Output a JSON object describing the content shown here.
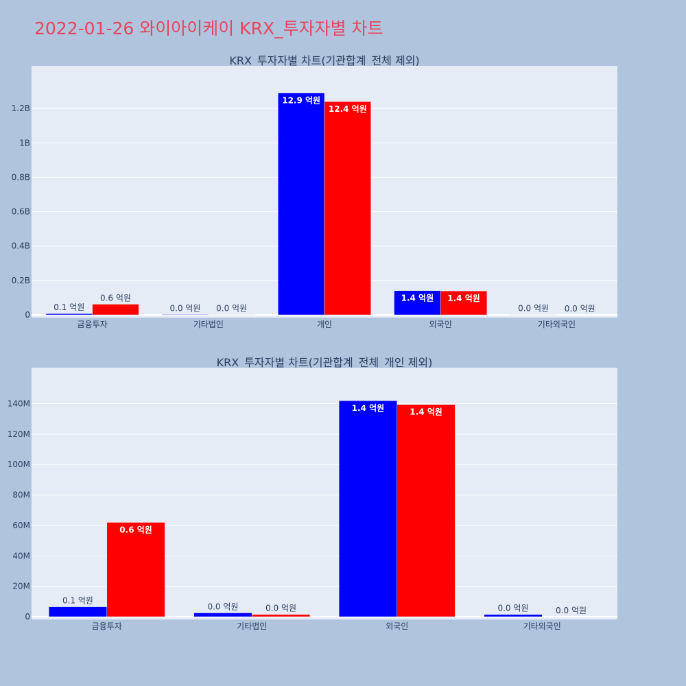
{
  "page_title": "2022-01-26 와이아이케이 KRX_투자자별 차트",
  "colors": {
    "background": "#b0c4de",
    "plot_background": "#e5ecf6",
    "grid": "#ffffff",
    "title": "#e8455a",
    "text": "#2a3f5f",
    "series_a": "#0000ff",
    "series_b": "#ff0000"
  },
  "chart_data": [
    {
      "type": "bar",
      "title": "KRX_투자자별 차트(기관합계_전체 제외)",
      "xlabel": "",
      "ylabel": "",
      "categories": [
        "금융투자",
        "기타법인",
        "개인",
        "외국인",
        "기타외국인"
      ],
      "series": [
        {
          "color": "#0000ff",
          "values": [
            7000000,
            2500000,
            1290000000,
            141000000,
            1500000
          ],
          "labels": [
            "0.1 억원",
            "0.0 억원",
            "12.9 억원",
            "1.4 억원",
            "0.0 억원"
          ]
        },
        {
          "color": "#ff0000",
          "values": [
            62000000,
            1500000,
            1240000000,
            139000000,
            0
          ],
          "labels": [
            "0.6 억원",
            "0.0 억원",
            "12.4 억원",
            "1.4 억원",
            "0.0 억원"
          ]
        }
      ],
      "ylim": [
        0,
        1380000000
      ],
      "yticks": [
        0,
        200000000,
        400000000,
        600000000,
        800000000,
        1000000000,
        1200000000
      ],
      "ytick_labels": [
        "0",
        "0.2B",
        "0.4B",
        "0.6B",
        "0.8B",
        "1B",
        "1.2B"
      ],
      "grid": true,
      "legend": "none"
    },
    {
      "type": "bar",
      "title": "KRX_투자자별 차트(기관합계_전체_개인 제외)",
      "xlabel": "",
      "ylabel": "",
      "categories": [
        "금융투자",
        "기타법인",
        "외국인",
        "기타외국인"
      ],
      "series": [
        {
          "color": "#0000ff",
          "values": [
            6500000,
            2500000,
            142000000,
            1500000
          ],
          "labels": [
            "0.1 억원",
            "0.0 억원",
            "1.4 억원",
            "0.0 억원"
          ]
        },
        {
          "color": "#ff0000",
          "values": [
            62000000,
            1500000,
            139500000,
            0
          ],
          "labels": [
            "0.6 억원",
            "0.0 억원",
            "1.4 억원",
            "0.0 억원"
          ]
        }
      ],
      "ylim": [
        0,
        151500000
      ],
      "yticks": [
        0,
        20000000,
        40000000,
        60000000,
        80000000,
        100000000,
        120000000,
        140000000
      ],
      "ytick_labels": [
        "0",
        "20M",
        "40M",
        "60M",
        "80M",
        "100M",
        "120M",
        "140M"
      ],
      "grid": true,
      "legend": "none"
    }
  ]
}
